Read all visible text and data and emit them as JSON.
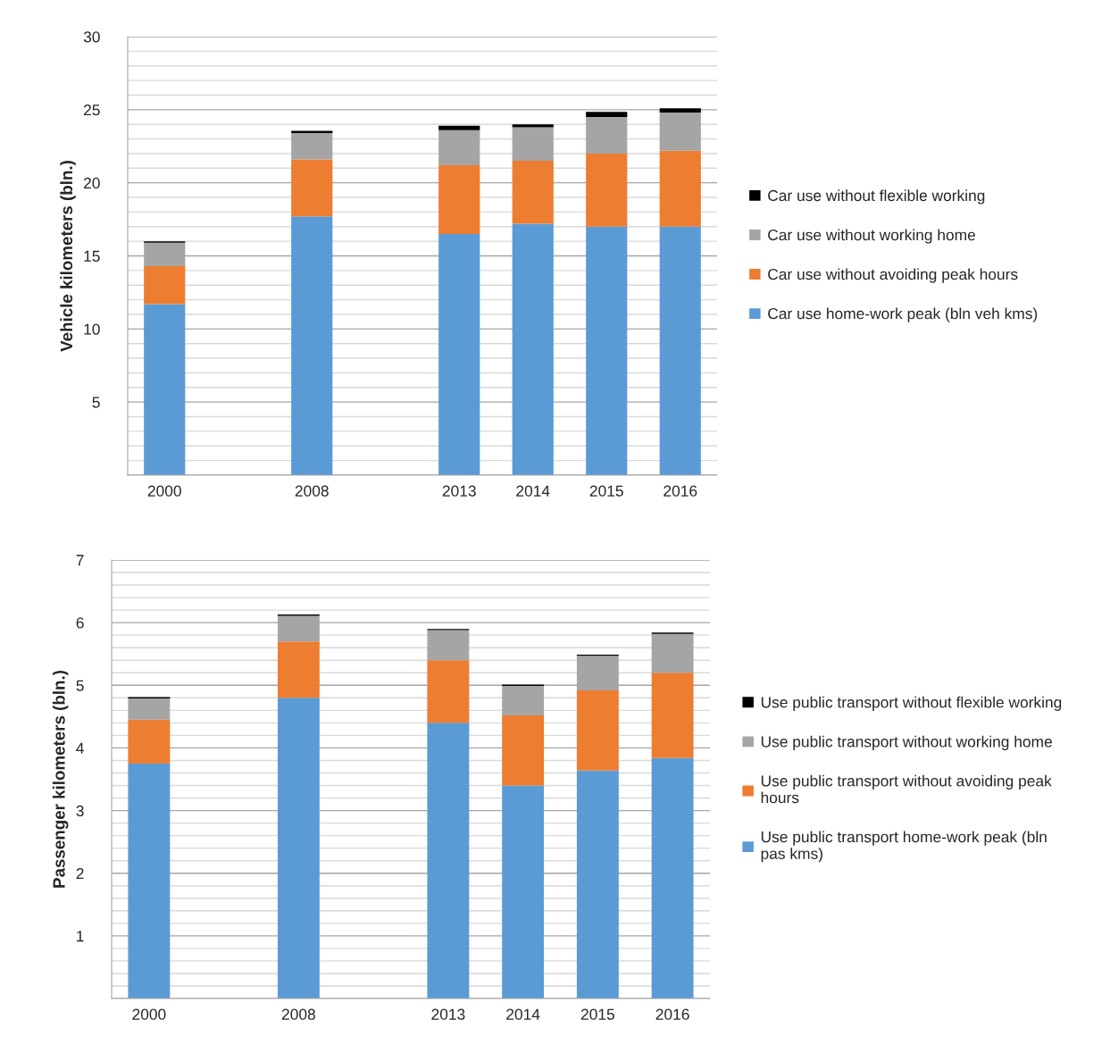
{
  "chart_data": [
    {
      "type": "bar",
      "stacked": true,
      "ylabel": "Vehicle kilometers (bln.)",
      "categories": [
        "2000",
        null,
        "2008",
        null,
        "2013",
        "2014",
        "2015",
        "2016"
      ],
      "ylim": [
        0,
        30
      ],
      "yticks": [
        {
          "value": 0,
          "label": null
        },
        5,
        10,
        15,
        20,
        25,
        30
      ],
      "grid": "y",
      "legend": "right",
      "series": [
        {
          "name": "Car use home-work peak (bln veh kms)",
          "color": "#5b9bd5",
          "values": [
            11.7,
            null,
            17.7,
            null,
            16.5,
            17.2,
            17.0,
            17.0
          ]
        },
        {
          "name": "Car use without avoiding peak hours",
          "color": "#ed7d31",
          "values": [
            2.6,
            null,
            3.9,
            null,
            4.7,
            4.3,
            5.0,
            5.2
          ]
        },
        {
          "name": "Car use without working home",
          "color": "#a5a5a5",
          "values": [
            1.6,
            null,
            1.8,
            null,
            2.4,
            2.3,
            2.5,
            2.6
          ]
        },
        {
          "name": "Car use without flexible working",
          "color": "#000000",
          "values": [
            0.1,
            null,
            0.15,
            null,
            0.3,
            0.2,
            0.35,
            0.3
          ]
        }
      ]
    },
    {
      "type": "bar",
      "stacked": true,
      "ylabel": "Passenger kilometers (bln.)",
      "categories": [
        "2000",
        null,
        "2008",
        null,
        "2013",
        "2014",
        "2015",
        "2016"
      ],
      "ylim": [
        0,
        7
      ],
      "yticks": [
        {
          "value": 0,
          "label": null
        },
        1,
        2,
        3,
        4,
        5,
        6,
        7
      ],
      "grid": "y",
      "legend": "right",
      "series": [
        {
          "name": "Use public transport home-work peak (bln pas kms)",
          "color": "#5b9bd5",
          "values": [
            3.75,
            null,
            4.8,
            null,
            4.4,
            3.4,
            3.64,
            3.84
          ]
        },
        {
          "name": "Use public transport without avoiding peak hours",
          "color": "#ed7d31",
          "values": [
            0.7,
            null,
            0.9,
            null,
            1.0,
            1.12,
            1.28,
            1.36
          ]
        },
        {
          "name": "Use public transport without working home",
          "color": "#a5a5a5",
          "values": [
            0.34,
            null,
            0.41,
            null,
            0.48,
            0.47,
            0.55,
            0.62
          ]
        },
        {
          "name": "Use public transport without flexible working",
          "color": "#000000",
          "values": [
            0.02,
            null,
            0.02,
            null,
            0.02,
            0.02,
            0.02,
            0.02
          ]
        }
      ]
    }
  ]
}
